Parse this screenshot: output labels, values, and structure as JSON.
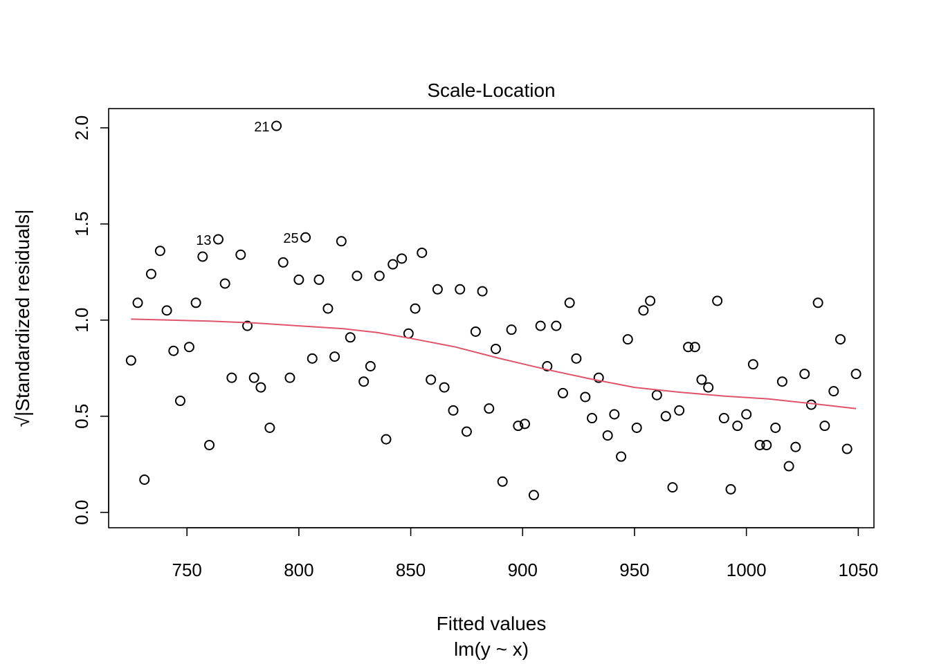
{
  "chart_data": {
    "type": "scatter",
    "title": "Scale-Location",
    "xlabel": "Fitted values",
    "xsublabel": "lm(y ~ x)",
    "ylabel_prefix": "√",
    "ylabel": "|Standardized residuals|",
    "xlim": [
      715,
      1057
    ],
    "ylim": [
      -0.08,
      2.1
    ],
    "x_ticks": [
      750,
      800,
      850,
      900,
      950,
      1000,
      1050
    ],
    "y_ticks": [
      0.0,
      0.5,
      1.0,
      1.5,
      2.0
    ],
    "x_tick_labels": [
      "750",
      "800",
      "850",
      "900",
      "950",
      "1000",
      "1050"
    ],
    "y_tick_labels": [
      "0.0",
      "0.5",
      "1.0",
      "1.5",
      "2.0"
    ],
    "grid": false,
    "colors": {
      "points": "#000000",
      "smooth": "#DF536B"
    },
    "x": [
      725,
      728,
      731,
      734,
      738,
      741,
      744,
      747,
      751,
      754,
      757,
      760,
      764,
      767,
      770,
      774,
      777,
      780,
      783,
      787,
      790,
      793,
      796,
      800,
      803,
      806,
      809,
      813,
      816,
      819,
      823,
      826,
      829,
      832,
      836,
      839,
      842,
      846,
      849,
      852,
      855,
      859,
      862,
      865,
      869,
      872,
      875,
      879,
      882,
      885,
      888,
      891,
      895,
      898,
      901,
      905,
      908,
      911,
      915,
      918,
      921,
      924,
      928,
      931,
      934,
      938,
      941,
      944,
      947,
      951,
      954,
      957,
      960,
      964,
      967,
      970,
      974,
      977,
      980,
      983,
      987,
      990,
      993,
      996,
      1000,
      1003,
      1006,
      1009,
      1013,
      1016,
      1019,
      1022,
      1026,
      1029,
      1032,
      1035,
      1039,
      1042,
      1045,
      1049
    ],
    "y": [
      0.79,
      1.09,
      0.17,
      1.24,
      1.36,
      1.05,
      0.84,
      0.58,
      0.86,
      1.09,
      1.33,
      0.35,
      1.42,
      1.19,
      0.7,
      1.34,
      0.97,
      0.7,
      0.65,
      0.44,
      2.01,
      1.3,
      0.7,
      1.21,
      1.43,
      0.8,
      1.21,
      1.06,
      0.81,
      1.41,
      0.91,
      1.23,
      0.68,
      0.76,
      1.23,
      0.38,
      1.29,
      1.32,
      0.93,
      1.06,
      1.35,
      0.69,
      1.16,
      0.65,
      0.53,
      1.16,
      0.42,
      0.94,
      1.15,
      0.54,
      0.85,
      0.16,
      0.95,
      0.45,
      0.46,
      0.09,
      0.97,
      0.76,
      0.97,
      0.62,
      1.09,
      0.8,
      0.6,
      0.49,
      0.7,
      0.4,
      0.51,
      0.29,
      0.9,
      0.44,
      1.05,
      1.1,
      0.61,
      0.5,
      0.13,
      0.53,
      0.86,
      0.86,
      0.69,
      0.65,
      1.1,
      0.49,
      0.12,
      0.45,
      0.51,
      0.77,
      0.35,
      0.35,
      0.44,
      0.68,
      0.24,
      0.34,
      0.72,
      0.56,
      1.09,
      0.45,
      0.63,
      0.9,
      0.33,
      0.72
    ],
    "labeled_points": [
      {
        "label": "21",
        "x": 790,
        "y": 2.01
      },
      {
        "label": "13",
        "x": 764,
        "y": 1.42
      },
      {
        "label": "25",
        "x": 803,
        "y": 1.43
      }
    ],
    "smooth_line": {
      "x": [
        725,
        760,
        780,
        800,
        820,
        835,
        850,
        870,
        890,
        910,
        930,
        950,
        970,
        990,
        1010,
        1030,
        1049
      ],
      "y": [
        1.005,
        0.995,
        0.985,
        0.97,
        0.955,
        0.935,
        0.905,
        0.86,
        0.8,
        0.745,
        0.695,
        0.65,
        0.625,
        0.605,
        0.59,
        0.565,
        0.54
      ]
    }
  }
}
